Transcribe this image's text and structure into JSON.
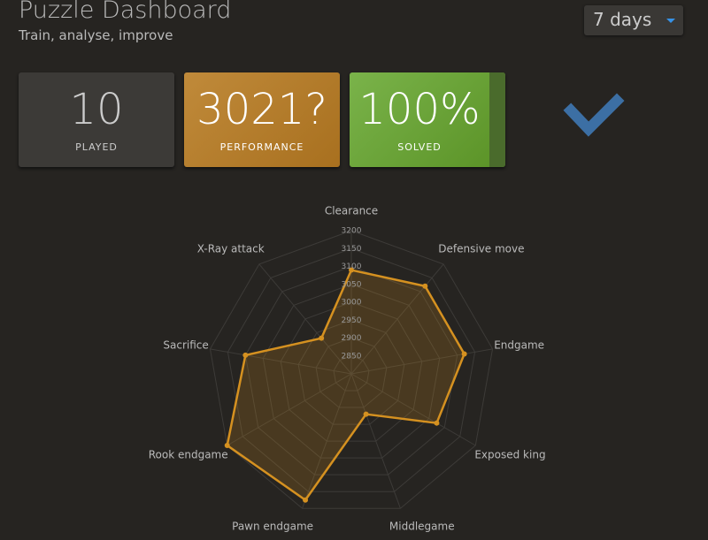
{
  "header": {
    "title": "Puzzle Dashboard",
    "subtitle": "Train, analyse, improve",
    "period": "7 days"
  },
  "cards": [
    {
      "value": "10",
      "label": "PLAYED"
    },
    {
      "value": "3021?",
      "label": "PERFORMANCE"
    },
    {
      "value": "100%",
      "label": "SOLVED"
    }
  ],
  "chart_data": {
    "type": "radar",
    "categories": [
      "Clearance",
      "Defensive move",
      "Endgame",
      "Exposed king",
      "Middlegame",
      "Pawn endgame",
      "Rook endgame",
      "Sacrifice",
      "X-Ray attack"
    ],
    "values": [
      3090,
      3120,
      3120,
      3075,
      2920,
      3175,
      3200,
      3100,
      2930
    ],
    "color": "#d59120",
    "rlim": [
      2800,
      3200
    ],
    "rticks": [
      2850,
      2900,
      2950,
      3000,
      3050,
      3100,
      3150,
      3200
    ],
    "grid": true
  }
}
